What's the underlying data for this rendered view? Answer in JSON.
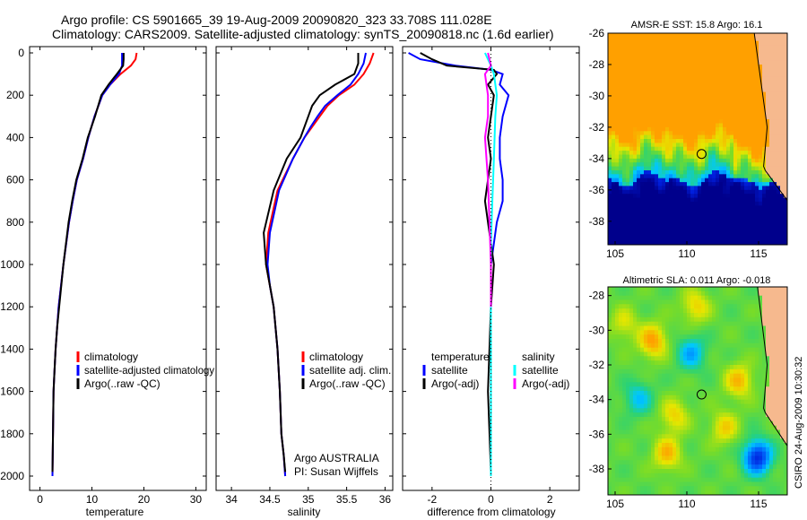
{
  "header": {
    "line1": "Argo profile: CS 5901665_39 19-Aug-2009 20090820_323 33.708S 111.028E",
    "line2": "Climatology: CARS2009. Satellite-adjusted climatology: synTS_20090818.nc (1.6d earlier)"
  },
  "footer_stamp": "CSIRO 24-Aug-2009 10:30:32",
  "colors": {
    "climatology": "#ff0000",
    "satellite": "#0000ff",
    "argo": "#000000",
    "sal_satellite": "#00ffff",
    "sal_argo": "#ff00ff",
    "land": "#f6b98e"
  },
  "chart_data": [
    {
      "type": "line",
      "xlabel": "temperature",
      "ylim": [
        0,
        2000
      ],
      "y_inverted": true,
      "xlim": [
        -2,
        32
      ],
      "xticks": [
        "0",
        "10",
        "20",
        "30"
      ],
      "xtick_values": [
        0,
        10,
        20,
        30
      ],
      "yticks": [
        "0",
        "200",
        "400",
        "600",
        "800",
        "1000",
        "1200",
        "1400",
        "1600",
        "1800",
        "2000"
      ],
      "legend": [
        "climatology",
        "satellite-adjusted climatology",
        "Argo(..raw -QC)"
      ],
      "series": [
        {
          "name": "climatology",
          "color": "#ff0000",
          "x": [
            18.6,
            18.4,
            17.5,
            15.5,
            13.5,
            12.0,
            10.5,
            9.3,
            8.3,
            7.1,
            6.3,
            5.6,
            4.5,
            3.6,
            3.3,
            3.0,
            2.8,
            2.6,
            2.5,
            2.4
          ],
          "y": [
            0,
            30,
            60,
            100,
            150,
            200,
            300,
            400,
            500,
            600,
            700,
            800,
            1000,
            1200,
            1300,
            1400,
            1500,
            1600,
            1800,
            2000
          ]
        },
        {
          "name": "satellite-adjusted climatology",
          "color": "#0000ff",
          "x": [
            15.8,
            15.8,
            15.8,
            15.2,
            13.5,
            12.0,
            10.5,
            9.3,
            8.3,
            7.1,
            6.3,
            5.6,
            4.5,
            3.6,
            3.3,
            3.0,
            2.8,
            2.6,
            2.5,
            2.4
          ],
          "y": [
            0,
            30,
            60,
            100,
            150,
            200,
            300,
            400,
            500,
            600,
            700,
            800,
            1000,
            1200,
            1300,
            1400,
            1500,
            1600,
            1800,
            2000
          ]
        },
        {
          "name": "Argo(..raw -QC)",
          "color": "#000000",
          "x": [
            16.1,
            16.1,
            16.0,
            14.8,
            13.2,
            11.8,
            10.6,
            9.2,
            8.2,
            7.0,
            6.2,
            5.5,
            4.5,
            3.7,
            3.3,
            3.0,
            2.8,
            2.6,
            2.5,
            2.4
          ],
          "y": [
            0,
            30,
            60,
            100,
            150,
            200,
            300,
            400,
            500,
            600,
            700,
            800,
            1000,
            1200,
            1300,
            1400,
            1500,
            1600,
            1800,
            1980
          ]
        }
      ]
    },
    {
      "type": "line",
      "xlabel": "salinity",
      "ylim": [
        0,
        2000
      ],
      "y_inverted": true,
      "xlim": [
        33.8,
        36.1
      ],
      "xticks": [
        "34",
        "34.5",
        "35",
        "35.5",
        "36"
      ],
      "xtick_values": [
        34,
        34.5,
        35,
        35.5,
        36
      ],
      "legend": [
        "climatology",
        "satellite adj. clim.",
        "Argo(..raw -QC)"
      ],
      "annotation": [
        "Argo AUSTRALIA",
        "PI: Susan Wijffels"
      ],
      "series": [
        {
          "name": "climatology",
          "color": "#ff0000",
          "x": [
            35.85,
            35.8,
            35.72,
            35.6,
            35.4,
            35.25,
            35.15,
            35.05,
            34.95,
            34.8,
            34.6,
            34.48,
            34.45,
            34.5,
            34.55,
            34.6,
            34.63,
            34.65,
            34.68,
            34.7
          ],
          "y": [
            0,
            50,
            100,
            150,
            200,
            250,
            300,
            350,
            400,
            500,
            650,
            850,
            1000,
            1100,
            1200,
            1400,
            1600,
            1800,
            1900,
            2000
          ]
        },
        {
          "name": "satellite adj. clim.",
          "color": "#0000ff",
          "x": [
            35.75,
            35.72,
            35.65,
            35.55,
            35.38,
            35.22,
            35.12,
            35.03,
            34.95,
            34.8,
            34.62,
            34.5,
            34.47,
            34.5,
            34.55,
            34.6,
            34.63,
            34.65,
            34.68,
            34.7
          ],
          "y": [
            0,
            50,
            100,
            150,
            200,
            250,
            300,
            350,
            400,
            500,
            650,
            850,
            1000,
            1100,
            1200,
            1400,
            1600,
            1800,
            1900,
            2000
          ]
        },
        {
          "name": "Argo(..raw -QC)",
          "color": "#000000",
          "x": [
            35.65,
            35.65,
            35.6,
            35.35,
            35.15,
            35.05,
            35.0,
            34.95,
            34.9,
            34.72,
            34.55,
            34.42,
            34.45,
            34.5,
            34.55,
            34.6,
            34.63,
            34.65,
            34.68,
            34.7
          ],
          "y": [
            0,
            50,
            100,
            150,
            200,
            250,
            300,
            350,
            400,
            500,
            650,
            850,
            1000,
            1100,
            1200,
            1400,
            1600,
            1800,
            1900,
            1980
          ]
        }
      ]
    },
    {
      "type": "line",
      "xlabel": "difference from climatology",
      "ylim": [
        0,
        2000
      ],
      "y_inverted": true,
      "xlim": [
        -3,
        3
      ],
      "xticks": [
        "-2",
        "0",
        "2"
      ],
      "xtick_values": [
        -2,
        0,
        2
      ],
      "legend_temperature": [
        "temperature",
        "satellite",
        "Argo(-adj)"
      ],
      "legend_salinity": [
        "salinity",
        "satellite",
        "Argo(-adj)"
      ],
      "series": [
        {
          "name": "satellite",
          "group": "temperature",
          "color": "#0000ff",
          "x": [
            -2.8,
            -2.4,
            -1.2,
            0.0,
            0.4,
            0.3,
            0.6,
            0.4,
            0.3,
            0.3,
            0.4,
            0.4,
            0.2,
            0.1,
            0.0,
            0.0,
            0.0,
            0.0
          ],
          "y": [
            0,
            30,
            60,
            80,
            100,
            150,
            200,
            300,
            400,
            500,
            600,
            700,
            800,
            900,
            1000,
            1200,
            1600,
            2000
          ]
        },
        {
          "name": "Argo(-adj)",
          "group": "temperature",
          "color": "#000000",
          "x": [
            -2.4,
            -2.0,
            -1.5,
            0.1,
            0.2,
            -0.1,
            0.1,
            0.0,
            -0.1,
            0.0,
            -0.1,
            -0.2,
            -0.1,
            0.0,
            0.1,
            0.0,
            -0.1,
            0.0
          ],
          "y": [
            0,
            30,
            60,
            80,
            100,
            150,
            200,
            300,
            400,
            500,
            600,
            700,
            800,
            900,
            1000,
            1200,
            1600,
            1980
          ]
        },
        {
          "name": "satellite",
          "group": "salinity",
          "color": "#00ffff",
          "x": [
            -0.2,
            -0.1,
            0.0,
            0.1,
            0.2,
            0.15,
            0.1,
            0.05,
            0.0,
            0.0,
            0.0,
            0.0
          ],
          "y": [
            0,
            30,
            60,
            100,
            200,
            300,
            500,
            700,
            900,
            1200,
            1600,
            2000
          ]
        },
        {
          "name": "Argo(-adj)",
          "group": "salinity",
          "color": "#ff00ff",
          "x": [
            -0.1,
            0.0,
            -0.2,
            -0.1,
            -0.1,
            -0.2,
            -0.1,
            -0.05,
            0.0,
            0.0
          ],
          "y": [
            0,
            60,
            100,
            200,
            300,
            400,
            600,
            800,
            1000,
            1200
          ]
        }
      ]
    },
    {
      "type": "heatmap",
      "title": "AMSR-E SST: 15.8  Argo: 16.1",
      "xlim": [
        104.5,
        117
      ],
      "ylim": [
        -39.5,
        -26
      ],
      "xticks": [
        "105",
        "110",
        "115"
      ],
      "xtick_values": [
        105,
        110,
        115
      ],
      "yticks": [
        "-26",
        "-28",
        "-30",
        "-32",
        "-34",
        "-36",
        "-38"
      ],
      "ytick_values": [
        -26,
        -28,
        -30,
        -32,
        -34,
        -36,
        -38
      ],
      "float_position": {
        "lon": 111.028,
        "lat": -33.708
      }
    },
    {
      "type": "heatmap",
      "title": "Altimetric SLA: 0.011  Argo: -0.018",
      "xlim": [
        104.5,
        117
      ],
      "ylim": [
        -39.5,
        -27.5
      ],
      "xticks": [
        "105",
        "110",
        "115"
      ],
      "xtick_values": [
        105,
        110,
        115
      ],
      "yticks": [
        "-28",
        "-30",
        "-32",
        "-34",
        "-36",
        "-38"
      ],
      "ytick_values": [
        -28,
        -30,
        -32,
        -34,
        -36,
        -38
      ],
      "float_position": {
        "lon": 111.028,
        "lat": -33.708
      }
    }
  ]
}
